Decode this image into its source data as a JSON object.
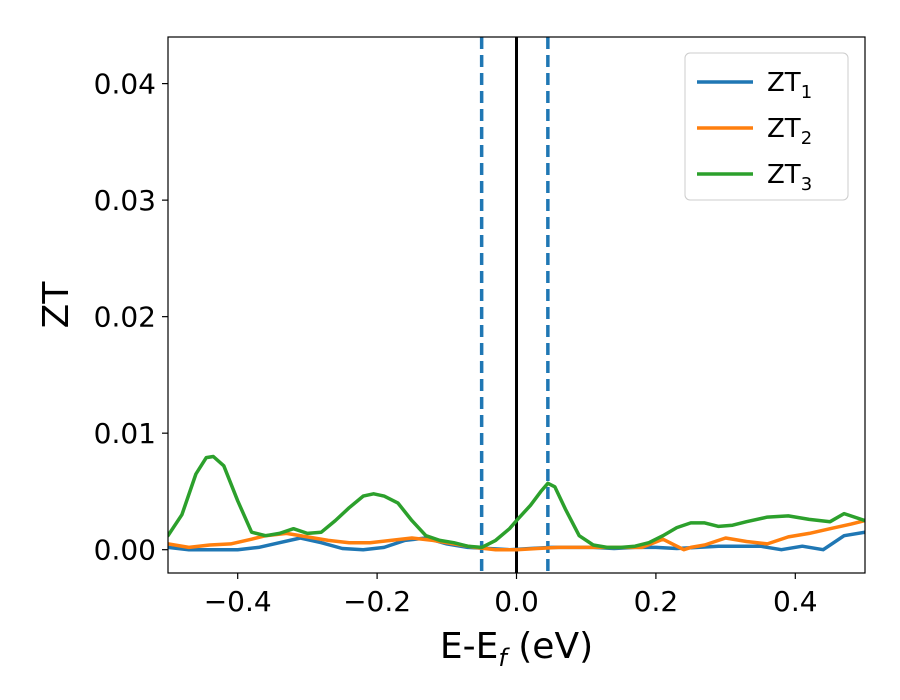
{
  "chart_data": {
    "type": "line",
    "xlabel_main": "E-E",
    "xlabel_sub": "f",
    "xlabel_unit": " (eV)",
    "ylabel": "ZT",
    "xlim": [
      -0.5,
      0.5
    ],
    "ylim": [
      -0.002,
      0.044
    ],
    "xticks": [
      -0.4,
      -0.2,
      0.0,
      0.2,
      0.4
    ],
    "xtick_labels": [
      "−0.4",
      "−0.2",
      "0.0",
      "0.2",
      "0.4"
    ],
    "yticks": [
      0.0,
      0.01,
      0.02,
      0.03,
      0.04
    ],
    "ytick_labels": [
      "0.00",
      "0.01",
      "0.02",
      "0.03",
      "0.04"
    ],
    "grid": false,
    "legend_position": "top-right",
    "vertical_lines": [
      {
        "x": -0.05,
        "style": "dashed",
        "color": "#1f77b4"
      },
      {
        "x": 0.0,
        "style": "solid",
        "color": "#000000"
      },
      {
        "x": 0.045,
        "style": "dashed",
        "color": "#1f77b4"
      }
    ],
    "series": [
      {
        "name": "ZT",
        "subscript": "1",
        "color": "#1f77b4",
        "x": [
          -0.5,
          -0.47,
          -0.44,
          -0.4,
          -0.37,
          -0.34,
          -0.31,
          -0.28,
          -0.25,
          -0.22,
          -0.19,
          -0.16,
          -0.13,
          -0.1,
          -0.07,
          -0.04,
          -0.01,
          0.02,
          0.05,
          0.08,
          0.11,
          0.14,
          0.17,
          0.2,
          0.23,
          0.26,
          0.29,
          0.32,
          0.35,
          0.38,
          0.41,
          0.44,
          0.47,
          0.5
        ],
        "values": [
          0.0002,
          0.0,
          0.0,
          0.0,
          0.0002,
          0.0006,
          0.001,
          0.0006,
          0.0001,
          0.0,
          0.0002,
          0.0008,
          0.001,
          0.0005,
          0.0002,
          0.0001,
          0.0,
          0.0001,
          0.0002,
          0.0002,
          0.0002,
          0.0001,
          0.0002,
          0.0002,
          0.0001,
          0.0002,
          0.0003,
          0.0003,
          0.0003,
          0.0,
          0.0003,
          0.0,
          0.0012,
          0.0015
        ]
      },
      {
        "name": "ZT",
        "subscript": "2",
        "color": "#ff7f0e",
        "x": [
          -0.5,
          -0.47,
          -0.44,
          -0.41,
          -0.38,
          -0.36,
          -0.33,
          -0.3,
          -0.27,
          -0.24,
          -0.21,
          -0.18,
          -0.15,
          -0.12,
          -0.09,
          -0.06,
          -0.03,
          0.0,
          0.03,
          0.06,
          0.09,
          0.12,
          0.15,
          0.18,
          0.21,
          0.24,
          0.25,
          0.27,
          0.3,
          0.33,
          0.36,
          0.39,
          0.42,
          0.45,
          0.48,
          0.5
        ],
        "values": [
          0.0005,
          0.0002,
          0.0004,
          0.0005,
          0.0009,
          0.0012,
          0.0014,
          0.0011,
          0.0008,
          0.0006,
          0.0006,
          0.0008,
          0.001,
          0.0008,
          0.0005,
          0.0002,
          0.0,
          0.0,
          0.0001,
          0.0002,
          0.0002,
          0.0002,
          0.0002,
          0.0002,
          0.0009,
          0.0,
          0.0002,
          0.0004,
          0.001,
          0.0007,
          0.0005,
          0.0011,
          0.0014,
          0.0018,
          0.0022,
          0.0025
        ]
      },
      {
        "name": "ZT",
        "subscript": "3",
        "color": "#2ca02c",
        "x": [
          -0.5,
          -0.48,
          -0.46,
          -0.445,
          -0.435,
          -0.42,
          -0.4,
          -0.38,
          -0.36,
          -0.34,
          -0.32,
          -0.3,
          -0.28,
          -0.26,
          -0.24,
          -0.22,
          -0.205,
          -0.19,
          -0.17,
          -0.15,
          -0.13,
          -0.11,
          -0.09,
          -0.07,
          -0.05,
          -0.03,
          -0.01,
          0.0,
          0.02,
          0.035,
          0.045,
          0.055,
          0.07,
          0.09,
          0.11,
          0.13,
          0.15,
          0.17,
          0.19,
          0.21,
          0.23,
          0.25,
          0.27,
          0.29,
          0.31,
          0.33,
          0.36,
          0.39,
          0.42,
          0.45,
          0.47,
          0.5
        ],
        "values": [
          0.0012,
          0.003,
          0.0065,
          0.0079,
          0.008,
          0.0072,
          0.0042,
          0.0015,
          0.0012,
          0.0014,
          0.0018,
          0.0014,
          0.0015,
          0.0025,
          0.0036,
          0.0046,
          0.0048,
          0.0046,
          0.004,
          0.0025,
          0.0012,
          0.0008,
          0.0006,
          0.0003,
          0.0002,
          0.0008,
          0.0018,
          0.0025,
          0.0038,
          0.005,
          0.0057,
          0.0054,
          0.0035,
          0.0012,
          0.0004,
          0.0002,
          0.0002,
          0.0003,
          0.0006,
          0.0012,
          0.0019,
          0.0023,
          0.0023,
          0.002,
          0.0021,
          0.0024,
          0.0028,
          0.0029,
          0.0026,
          0.0024,
          0.0031,
          0.0025
        ]
      }
    ]
  }
}
